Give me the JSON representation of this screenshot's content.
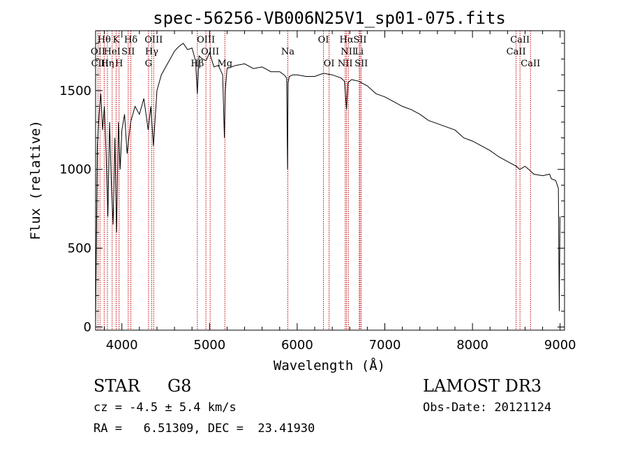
{
  "chart_data": {
    "type": "line",
    "title": "spec-56256-VB006N25V1_sp01-075.fits",
    "xlabel": "Wavelength (Å)",
    "ylabel": "Flux (relative)",
    "xlim": [
      3700,
      9050
    ],
    "ylim": [
      -20,
      1880
    ],
    "x_ticks": [
      4000,
      5000,
      6000,
      7000,
      8000,
      9000
    ],
    "y_ticks": [
      0,
      500,
      1000,
      1500
    ],
    "spectrum": {
      "x": [
        3700,
        3720,
        3740,
        3760,
        3780,
        3800,
        3820,
        3840,
        3860,
        3880,
        3900,
        3920,
        3940,
        3960,
        3980,
        4000,
        4030,
        4060,
        4100,
        4150,
        4200,
        4250,
        4300,
        4330,
        4360,
        4400,
        4450,
        4500,
        4550,
        4600,
        4650,
        4700,
        4750,
        4800,
        4840,
        4861,
        4880,
        4920,
        4960,
        5000,
        5050,
        5100,
        5150,
        5170,
        5180,
        5200,
        5250,
        5300,
        5400,
        5500,
        5600,
        5700,
        5800,
        5850,
        5880,
        5890,
        5896,
        5910,
        5950,
        6000,
        6100,
        6200,
        6300,
        6400,
        6500,
        6540,
        6563,
        6580,
        6620,
        6700,
        6800,
        6900,
        7000,
        7100,
        7200,
        7300,
        7400,
        7500,
        7600,
        7700,
        7800,
        7900,
        8000,
        8100,
        8200,
        8300,
        8400,
        8500,
        8540,
        8600,
        8662,
        8700,
        8800,
        8880,
        8900,
        8950,
        8980,
        8990,
        8998
      ],
      "y": [
        20,
        1150,
        1350,
        1480,
        1250,
        1400,
        1100,
        700,
        1300,
        900,
        650,
        1200,
        600,
        1300,
        1000,
        1250,
        1350,
        1100,
        1300,
        1400,
        1350,
        1450,
        1250,
        1400,
        1150,
        1500,
        1600,
        1650,
        1700,
        1750,
        1780,
        1800,
        1760,
        1770,
        1690,
        1480,
        1720,
        1700,
        1690,
        1740,
        1650,
        1660,
        1600,
        1200,
        1500,
        1640,
        1650,
        1660,
        1670,
        1640,
        1650,
        1620,
        1620,
        1600,
        1580,
        1000,
        1550,
        1590,
        1600,
        1600,
        1590,
        1590,
        1610,
        1600,
        1580,
        1560,
        1380,
        1550,
        1570,
        1560,
        1530,
        1480,
        1460,
        1430,
        1400,
        1380,
        1350,
        1310,
        1290,
        1270,
        1250,
        1200,
        1180,
        1150,
        1120,
        1080,
        1050,
        1020,
        1000,
        1020,
        990,
        970,
        960,
        970,
        940,
        930,
        880,
        100,
        700
      ]
    },
    "lines": [
      {
        "name": "Hθ",
        "wavelength": 3798,
        "row": 1
      },
      {
        "name": "K",
        "wavelength": 3934,
        "row": 1
      },
      {
        "name": "Hδ",
        "wavelength": 4102,
        "row": 1
      },
      {
        "name": "OIII",
        "wavelength": 4363,
        "row": 1
      },
      {
        "name": "OIII",
        "wavelength": 4959,
        "row": 1
      },
      {
        "name": "OI",
        "wavelength": 6300,
        "row": 1
      },
      {
        "name": "Hα",
        "wavelength": 6563,
        "row": 1
      },
      {
        "name": "SII",
        "wavelength": 6717,
        "row": 1
      },
      {
        "name": "CaII",
        "wavelength": 8542,
        "row": 1
      },
      {
        "name": "OII",
        "wavelength": 3727,
        "row": 2
      },
      {
        "name": "HeI",
        "wavelength": 3889,
        "row": 2
      },
      {
        "name": "SII",
        "wavelength": 4072,
        "row": 2
      },
      {
        "name": "Hγ",
        "wavelength": 4340,
        "row": 2
      },
      {
        "name": "OIII",
        "wavelength": 5007,
        "row": 2
      },
      {
        "name": "Na",
        "wavelength": 5893,
        "row": 2
      },
      {
        "name": "NII",
        "wavelength": 6584,
        "row": 2
      },
      {
        "name": "Li",
        "wavelength": 6708,
        "row": 2
      },
      {
        "name": "CaII",
        "wavelength": 8498,
        "row": 2
      },
      {
        "name": "CIII",
        "wavelength": 3750,
        "row": 3
      },
      {
        "name": "Hη",
        "wavelength": 3835,
        "row": 3
      },
      {
        "name": "H",
        "wavelength": 3968,
        "row": 3
      },
      {
        "name": "G",
        "wavelength": 4304,
        "row": 3
      },
      {
        "name": "Hβ",
        "wavelength": 4861,
        "row": 3
      },
      {
        "name": "Mg",
        "wavelength": 5175,
        "row": 3
      },
      {
        "name": "OI",
        "wavelength": 6364,
        "row": 3
      },
      {
        "name": "NII",
        "wavelength": 6548,
        "row": 3
      },
      {
        "name": "SII",
        "wavelength": 6731,
        "row": 3
      },
      {
        "name": "CaII",
        "wavelength": 8662,
        "row": 3
      }
    ]
  },
  "info": {
    "class": "STAR",
    "subclass": "G8",
    "survey": "LAMOST DR3",
    "cz": "cz = -4.5 ± 5.4 km/s",
    "obs_date": "Obs-Date: 20121124",
    "coords": "RA =   6.51309, DEC =  23.41930"
  }
}
